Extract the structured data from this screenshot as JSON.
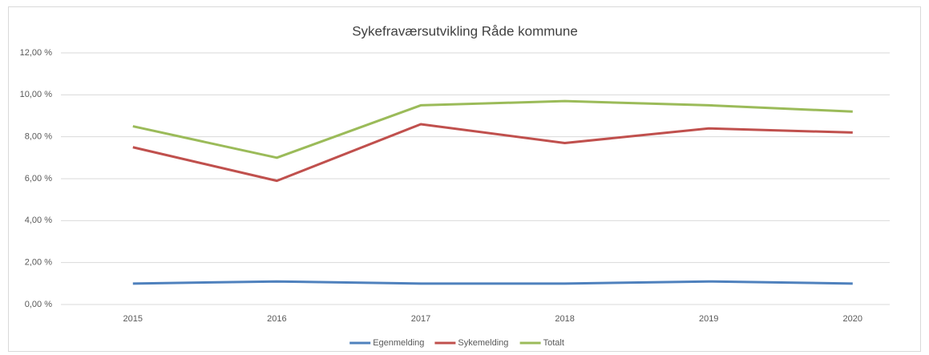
{
  "chart_data": {
    "type": "line",
    "title": "Sykefraværsutvikling Råde kommune",
    "categories": [
      "2015",
      "2016",
      "2017",
      "2018",
      "2019",
      "2020"
    ],
    "series": [
      {
        "name": "Egenmelding",
        "color": "#4f81bd",
        "values": [
          1.0,
          1.1,
          1.0,
          1.0,
          1.1,
          1.0
        ]
      },
      {
        "name": "Sykemelding",
        "color": "#c0504d",
        "values": [
          7.5,
          5.9,
          8.6,
          7.7,
          8.4,
          8.2
        ]
      },
      {
        "name": "Totalt",
        "color": "#9bbb59",
        "values": [
          8.5,
          7.0,
          9.5,
          9.7,
          9.5,
          9.2
        ]
      }
    ],
    "ylim": [
      0,
      12
    ],
    "yticks": [
      {
        "value": 0,
        "label": "0,00 %"
      },
      {
        "value": 2,
        "label": "2,00 %"
      },
      {
        "value": 4,
        "label": "4,00 %"
      },
      {
        "value": 6,
        "label": "6,00 %"
      },
      {
        "value": 8,
        "label": "8,00 %"
      },
      {
        "value": 10,
        "label": "10,00 %"
      },
      {
        "value": 12,
        "label": "12,00 %"
      }
    ],
    "grid": true,
    "legend": "bottom"
  }
}
